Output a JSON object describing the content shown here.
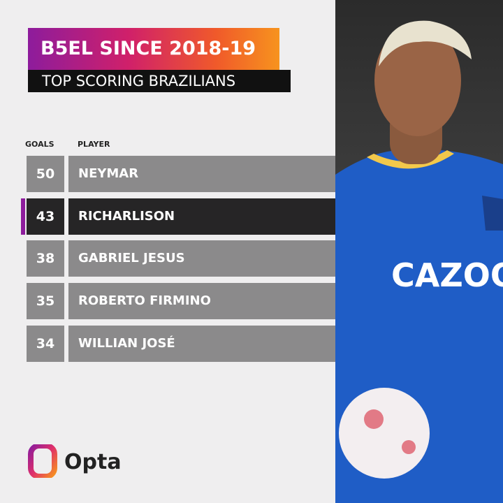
{
  "header": {
    "title": "B5EL SINCE 2018-19",
    "subtitle": "TOP SCORING BRAZILIANS"
  },
  "table": {
    "columns": [
      "GOALS",
      "PLAYER"
    ],
    "rows": [
      [
        50,
        "NEYMAR"
      ],
      [
        43,
        "RICHARLISON"
      ],
      [
        38,
        "GABRIEL JESUS"
      ],
      [
        35,
        "ROBERTO FIRMINO"
      ],
      [
        34,
        "WILLIAN JOSÉ"
      ]
    ],
    "highlight_row": 1
  },
  "footer": {
    "logo": "Opta"
  }
}
